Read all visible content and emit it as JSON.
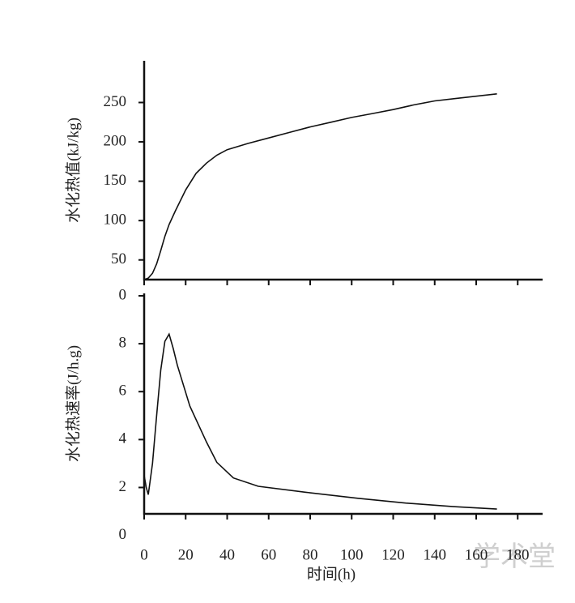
{
  "chart_data": [
    {
      "type": "line",
      "ylabel": "水化热值(kJ/kg)",
      "color": "#111111",
      "x": [
        0,
        2,
        4,
        6,
        8,
        10,
        12,
        15,
        20,
        25,
        30,
        35,
        40,
        50,
        60,
        70,
        80,
        90,
        100,
        110,
        120,
        130,
        140,
        150,
        160,
        170
      ],
      "values": [
        25,
        27,
        33,
        45,
        62,
        80,
        95,
        112,
        139,
        160,
        173,
        183,
        190,
        198,
        205,
        212,
        219,
        225,
        231,
        236,
        241,
        247,
        252,
        255,
        258,
        261
      ],
      "xlim": [
        0,
        192
      ],
      "ylim": [
        25,
        303
      ],
      "yticks": [
        50,
        100,
        150,
        200,
        250
      ]
    },
    {
      "type": "line",
      "ylabel": "水化热速率(J/h.g)",
      "xlabel": "时间(h)",
      "color": "#111111",
      "x": [
        0,
        1,
        2,
        4,
        6,
        8,
        10,
        12,
        14,
        16,
        22,
        30,
        35,
        43,
        55,
        78,
        103,
        126,
        149,
        170
      ],
      "values": [
        2.5,
        2.0,
        1.7,
        3.0,
        5.0,
        6.9,
        8.1,
        8.4,
        7.8,
        7.1,
        5.4,
        3.9,
        3.05,
        2.4,
        2.05,
        1.8,
        1.55,
        1.35,
        1.2,
        1.1
      ],
      "xlim": [
        0,
        192
      ],
      "xticks": [
        0,
        20,
        40,
        60,
        80,
        100,
        120,
        140,
        160,
        180
      ],
      "ylim": [
        0.9,
        10.1
      ],
      "yticks": [
        {
          "value": 10,
          "label": "0"
        },
        8,
        6,
        4,
        2,
        0
      ]
    }
  ],
  "watermark": "学术堂"
}
